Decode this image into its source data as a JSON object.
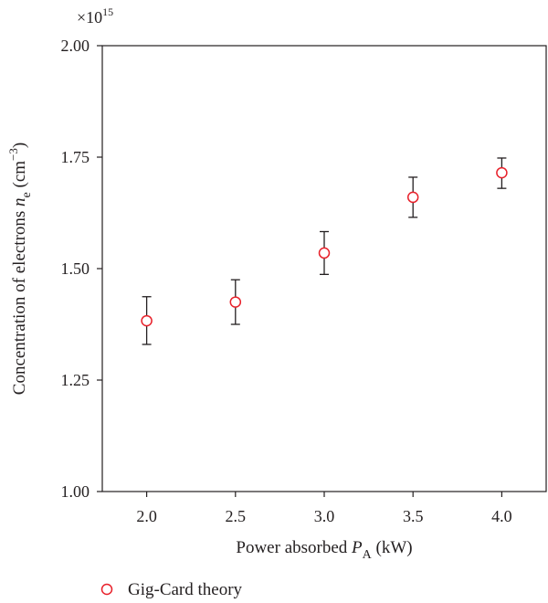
{
  "chart_data": {
    "type": "scatter",
    "y_multiplier": "×10",
    "y_multiplier_exp": "15",
    "xlabel": {
      "prefix": "Power absorbed ",
      "var": "P",
      "sub": "A",
      "suffix": " (kW)"
    },
    "ylabel": {
      "prefix": "Concentration of electrons ",
      "var": "n",
      "sub": "e",
      "unit_pre": " (cm",
      "unit_sup": "−3",
      "unit_post": ")"
    },
    "xlim": [
      1.75,
      4.25
    ],
    "ylim": [
      1.0,
      2.0
    ],
    "x_ticks": [
      "2.0",
      "2.5",
      "3.0",
      "3.5",
      "4.0"
    ],
    "y_ticks": [
      "1.00",
      "1.25",
      "1.50",
      "1.75",
      "2.00"
    ],
    "grid": false,
    "legend_position": "bottom-left",
    "series": [
      {
        "name": "Gig-Card theory",
        "color": "#e8202a",
        "marker": "open-circle",
        "x": [
          2.0,
          2.5,
          3.0,
          3.5,
          4.0
        ],
        "y": [
          1.383,
          1.425,
          1.535,
          1.66,
          1.715
        ],
        "err_low": [
          1.33,
          1.375,
          1.487,
          1.615,
          1.68
        ],
        "err_high": [
          1.437,
          1.475,
          1.583,
          1.705,
          1.748
        ]
      }
    ],
    "colors": {
      "axis": "#231f20",
      "errorbar": "#231f20"
    }
  }
}
